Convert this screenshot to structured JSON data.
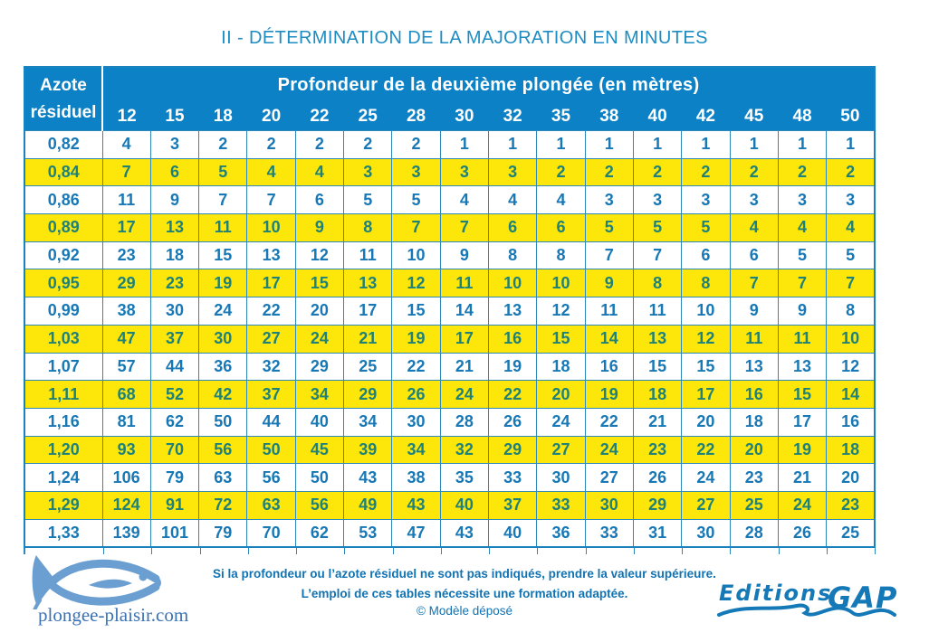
{
  "title": "II - DÉTERMINATION DE LA MAJORATION EN MINUTES",
  "table": {
    "row_header": {
      "line1": "Azote",
      "line2": "résiduel"
    },
    "col_group_header": "Profondeur de la deuxième plongée (en mètres)",
    "depths": [
      "12",
      "15",
      "18",
      "20",
      "22",
      "25",
      "28",
      "30",
      "32",
      "35",
      "38",
      "40",
      "42",
      "45",
      "48",
      "50"
    ],
    "rows": [
      {
        "azote": "0,82",
        "values": [
          4,
          3,
          2,
          2,
          2,
          2,
          2,
          1,
          1,
          1,
          1,
          1,
          1,
          1,
          1,
          1
        ]
      },
      {
        "azote": "0,84",
        "values": [
          7,
          6,
          5,
          4,
          4,
          3,
          3,
          3,
          3,
          2,
          2,
          2,
          2,
          2,
          2,
          2
        ]
      },
      {
        "azote": "0,86",
        "values": [
          11,
          9,
          7,
          7,
          6,
          5,
          5,
          4,
          4,
          4,
          3,
          3,
          3,
          3,
          3,
          3
        ]
      },
      {
        "azote": "0,89",
        "values": [
          17,
          13,
          11,
          10,
          9,
          8,
          7,
          7,
          6,
          6,
          5,
          5,
          5,
          4,
          4,
          4
        ]
      },
      {
        "azote": "0,92",
        "values": [
          23,
          18,
          15,
          13,
          12,
          11,
          10,
          9,
          8,
          8,
          7,
          7,
          6,
          6,
          5,
          5
        ]
      },
      {
        "azote": "0,95",
        "values": [
          29,
          23,
          19,
          17,
          15,
          13,
          12,
          11,
          10,
          10,
          9,
          8,
          8,
          7,
          7,
          7
        ]
      },
      {
        "azote": "0,99",
        "values": [
          38,
          30,
          24,
          22,
          20,
          17,
          15,
          14,
          13,
          12,
          11,
          11,
          10,
          9,
          9,
          8
        ]
      },
      {
        "azote": "1,03",
        "values": [
          47,
          37,
          30,
          27,
          24,
          21,
          19,
          17,
          16,
          15,
          14,
          13,
          12,
          11,
          11,
          10
        ]
      },
      {
        "azote": "1,07",
        "values": [
          57,
          44,
          36,
          32,
          29,
          25,
          22,
          21,
          19,
          18,
          16,
          15,
          15,
          13,
          13,
          12
        ]
      },
      {
        "azote": "1,11",
        "values": [
          68,
          52,
          42,
          37,
          34,
          29,
          26,
          24,
          22,
          20,
          19,
          18,
          17,
          16,
          15,
          14
        ]
      },
      {
        "azote": "1,16",
        "values": [
          81,
          62,
          50,
          44,
          40,
          34,
          30,
          28,
          26,
          24,
          22,
          21,
          20,
          18,
          17,
          16
        ]
      },
      {
        "azote": "1,20",
        "values": [
          93,
          70,
          56,
          50,
          45,
          39,
          34,
          32,
          29,
          27,
          24,
          23,
          22,
          20,
          19,
          18
        ]
      },
      {
        "azote": "1,24",
        "values": [
          106,
          79,
          63,
          56,
          50,
          43,
          38,
          35,
          33,
          30,
          27,
          26,
          24,
          23,
          21,
          20
        ]
      },
      {
        "azote": "1,29",
        "values": [
          124,
          91,
          72,
          63,
          56,
          49,
          43,
          40,
          37,
          33,
          30,
          29,
          27,
          25,
          24,
          23
        ]
      },
      {
        "azote": "1,33",
        "values": [
          139,
          101,
          79,
          70,
          62,
          53,
          47,
          43,
          40,
          36,
          33,
          31,
          30,
          28,
          26,
          25
        ]
      }
    ]
  },
  "footer": {
    "note_line1": "Si la profondeur ou l’azote résiduel ne sont pas indiqués, prendre la valeur supérieure.",
    "note_line2": "L’emploi de ces tables nécessite une formation adaptée.",
    "copyright": "© Modèle déposé",
    "site": "plongee-plaisir.com",
    "publisher_word1": "Editions",
    "publisher_word2": "GAP"
  },
  "colors": {
    "header_blue": "#0d81c5",
    "row_yellow": "#fde70a",
    "data_text_blue": "#1878b6",
    "data_text_on_yellow": "#1f8177",
    "title_blue": "#1d8cc2",
    "footer_text_blue": "#1173b2",
    "fish_logo_blue": "#6b9ed1",
    "site_text_blue": "#3b72b4",
    "publisher_blue": "#1579b8",
    "border_blue": "#2d89ba"
  }
}
